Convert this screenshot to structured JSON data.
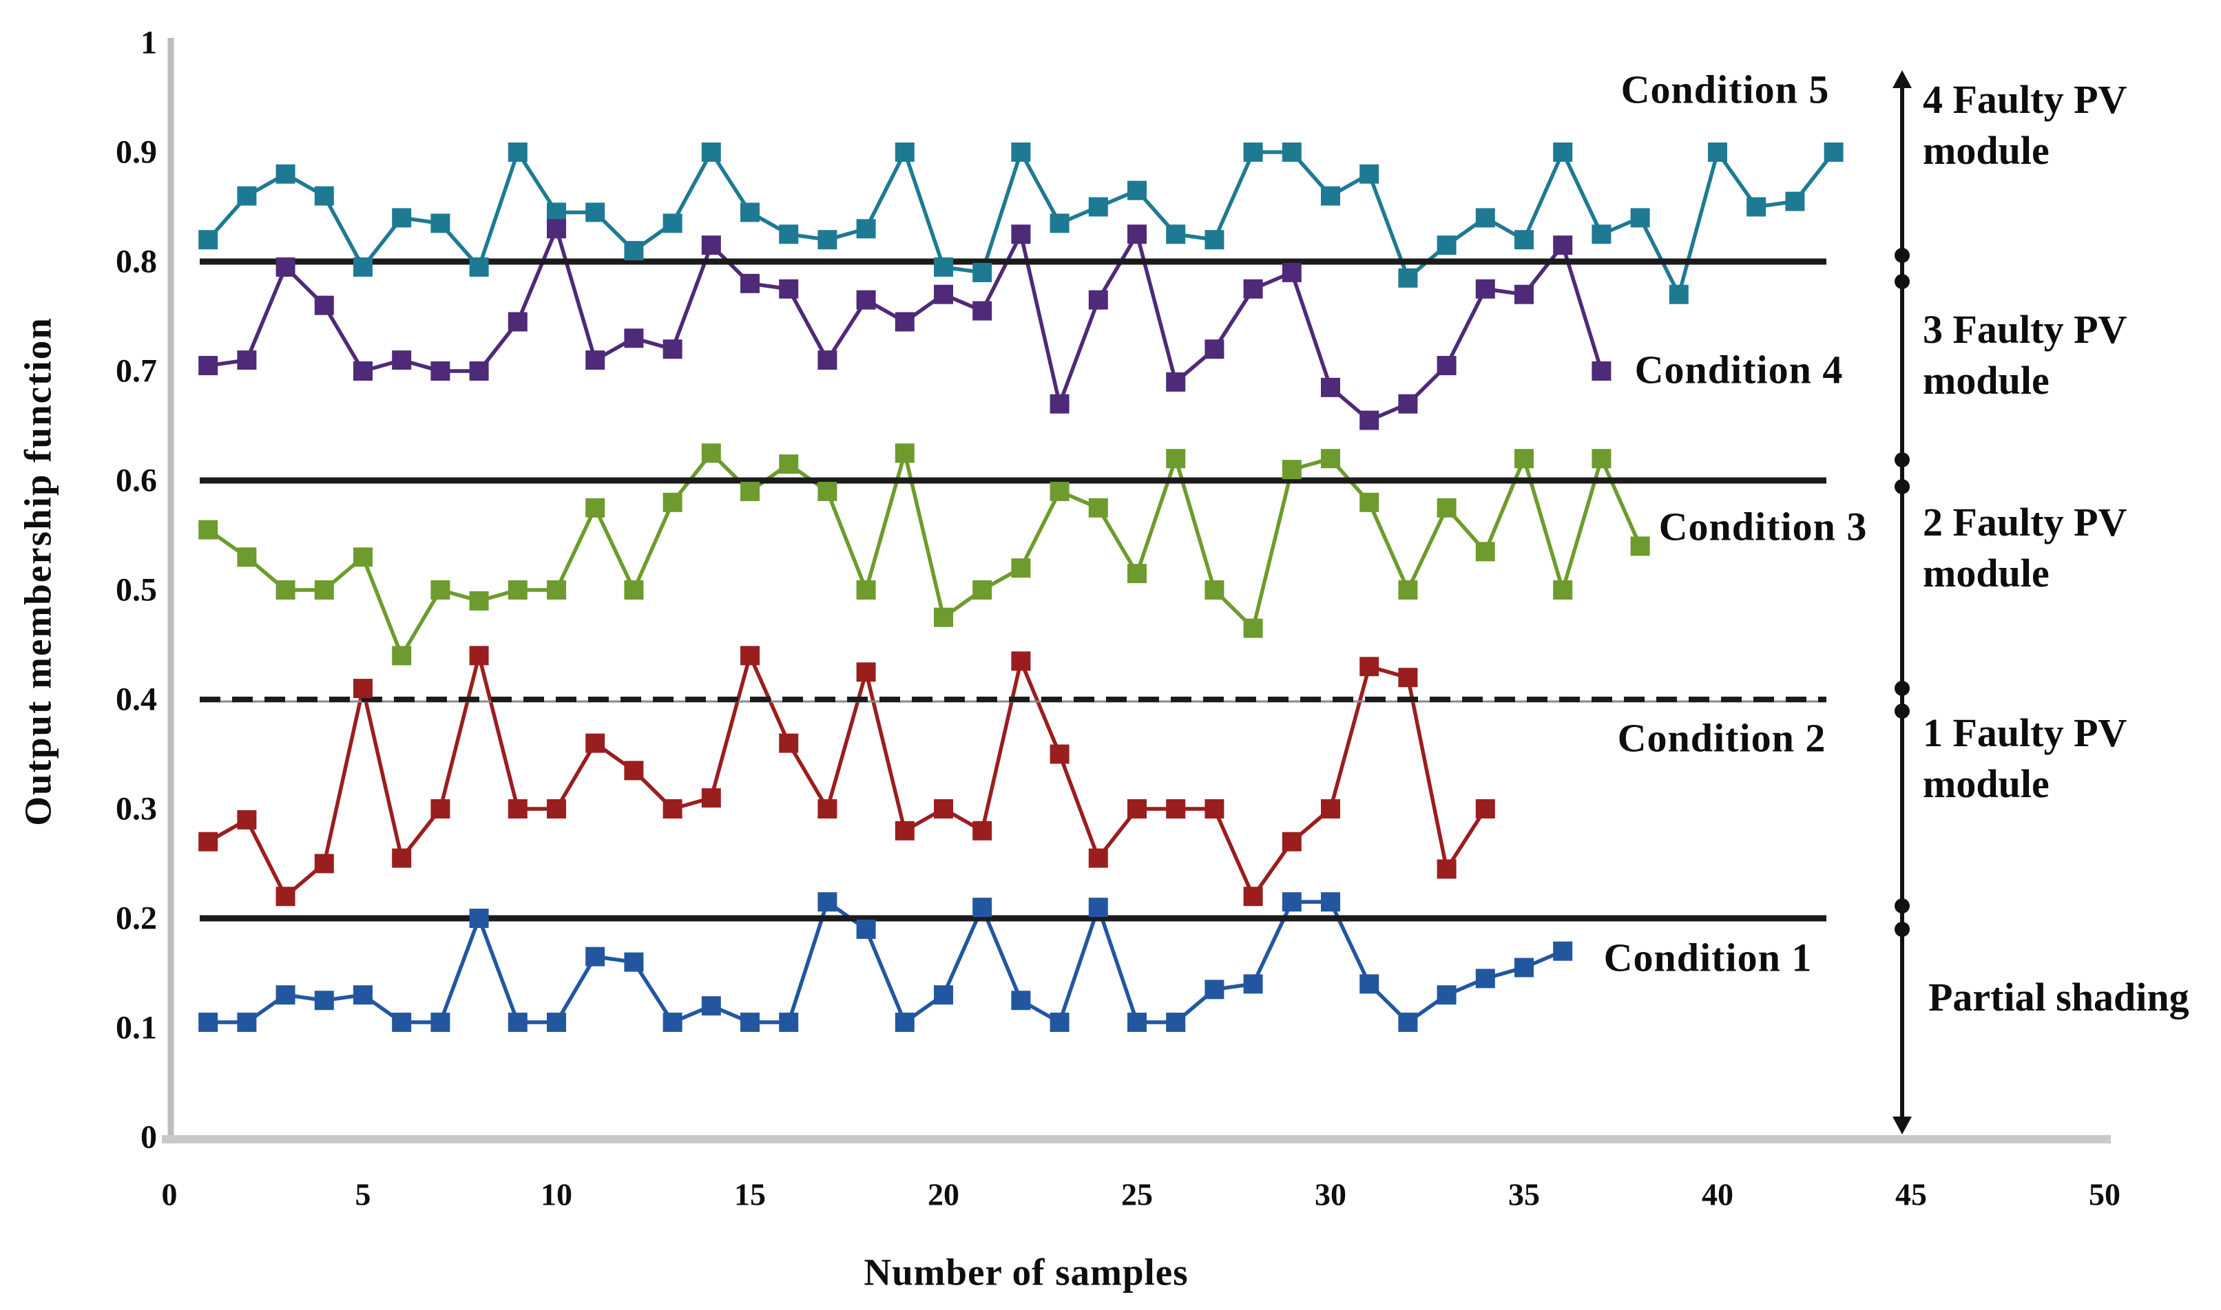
{
  "chart_data": {
    "type": "line",
    "title": "",
    "xlabel": "Number of samples",
    "ylabel": "Output membership function",
    "xlim": [
      0,
      50
    ],
    "ylim": [
      0,
      1
    ],
    "x_tick_labels": [
      "0",
      "5",
      "10",
      "15",
      "20",
      "25",
      "30",
      "35",
      "40",
      "45",
      "50"
    ],
    "x_tick_values": [
      0,
      5,
      10,
      15,
      20,
      25,
      30,
      35,
      40,
      45,
      50
    ],
    "y_tick_labels": [
      "0",
      "0.1",
      "0.2",
      "0.3",
      "0.4",
      "0.5",
      "0.6",
      "0.7",
      "0.8",
      "0.9",
      "1"
    ],
    "y_tick_values": [
      0,
      0.1,
      0.2,
      0.3,
      0.4,
      0.5,
      0.6,
      0.7,
      0.8,
      0.9,
      1
    ],
    "grid": false,
    "legend_position": "inline-annotations",
    "marker": "square",
    "x_start_sample": 1,
    "thresholds": [
      {
        "value": 0.8,
        "style": "solid"
      },
      {
        "value": 0.6,
        "style": "solid"
      },
      {
        "value": 0.4,
        "style": "dashed"
      },
      {
        "value": 0.2,
        "style": "solid"
      }
    ],
    "series": [
      {
        "name": "Condition 5",
        "color": "#1e7a93",
        "values": [
          0.82,
          0.86,
          0.88,
          0.86,
          0.795,
          0.84,
          0.835,
          0.795,
          0.9,
          0.845,
          0.845,
          0.81,
          0.835,
          0.9,
          0.845,
          0.825,
          0.82,
          0.83,
          0.9,
          0.795,
          0.79,
          0.9,
          0.835,
          0.85,
          0.865,
          0.825,
          0.82,
          0.9,
          0.9,
          0.86,
          0.88,
          0.785,
          0.815,
          0.84,
          0.82,
          0.9,
          0.825,
          0.84,
          0.77,
          0.9,
          0.85,
          0.855,
          0.9
        ]
      },
      {
        "name": "Condition 4",
        "color": "#4e2a78",
        "values": [
          0.705,
          0.71,
          0.795,
          0.76,
          0.7,
          0.71,
          0.7,
          0.7,
          0.745,
          0.83,
          0.71,
          0.73,
          0.72,
          0.815,
          0.78,
          0.775,
          0.71,
          0.765,
          0.745,
          0.77,
          0.755,
          0.825,
          0.67,
          0.765,
          0.825,
          0.69,
          0.72,
          0.775,
          0.79,
          0.685,
          0.655,
          0.67,
          0.705,
          0.775,
          0.77,
          0.815,
          0.7
        ]
      },
      {
        "name": "Condition 3",
        "color": "#6e9b2d",
        "values": [
          0.555,
          0.53,
          0.5,
          0.5,
          0.53,
          0.44,
          0.5,
          0.49,
          0.5,
          0.5,
          0.575,
          0.5,
          0.58,
          0.625,
          0.59,
          0.615,
          0.59,
          0.5,
          0.625,
          0.475,
          0.5,
          0.52,
          0.59,
          0.575,
          0.515,
          0.62,
          0.5,
          0.465,
          0.61,
          0.62,
          0.58,
          0.5,
          0.575,
          0.535,
          0.62,
          0.5,
          0.62,
          0.54
        ]
      },
      {
        "name": "Condition 2",
        "color": "#9a1e1e",
        "values": [
          0.27,
          0.29,
          0.22,
          0.25,
          0.41,
          0.255,
          0.3,
          0.44,
          0.3,
          0.3,
          0.36,
          0.335,
          0.3,
          0.31,
          0.44,
          0.36,
          0.3,
          0.425,
          0.28,
          0.3,
          0.28,
          0.435,
          0.35,
          0.255,
          0.3,
          0.3,
          0.3,
          0.22,
          0.27,
          0.3,
          0.43,
          0.42,
          0.245,
          0.3
        ]
      },
      {
        "name": "Condition 1",
        "color": "#2257a0",
        "values": [
          0.105,
          0.105,
          0.13,
          0.125,
          0.13,
          0.105,
          0.105,
          0.2,
          0.105,
          0.105,
          0.165,
          0.16,
          0.105,
          0.12,
          0.105,
          0.105,
          0.215,
          0.19,
          0.105,
          0.13,
          0.21,
          0.125,
          0.105,
          0.21,
          0.105,
          0.105,
          0.135,
          0.14,
          0.215,
          0.215,
          0.14,
          0.105,
          0.13,
          0.145,
          0.155,
          0.17
        ]
      }
    ],
    "condition_annotations": [
      "Condition 5",
      "Condition 4",
      "Condition 3",
      "Condition 2",
      "Condition 1"
    ],
    "region_annotations": [
      "4 Faulty PV\nmodule",
      "3 Faulty PV\nmodule",
      "2 Faulty PV\nmodule",
      "1 Faulty PV\nmodule",
      "Partial shading"
    ]
  },
  "axes": {
    "x_title": "Number of samples",
    "y_title": "Output membership function"
  },
  "colors": {
    "reference_line": "#1b1b1b",
    "axis_line": "#bdbdbd",
    "annotation_arrow": "#111111",
    "text": "#0d0d0d",
    "background": "#ffffff"
  }
}
